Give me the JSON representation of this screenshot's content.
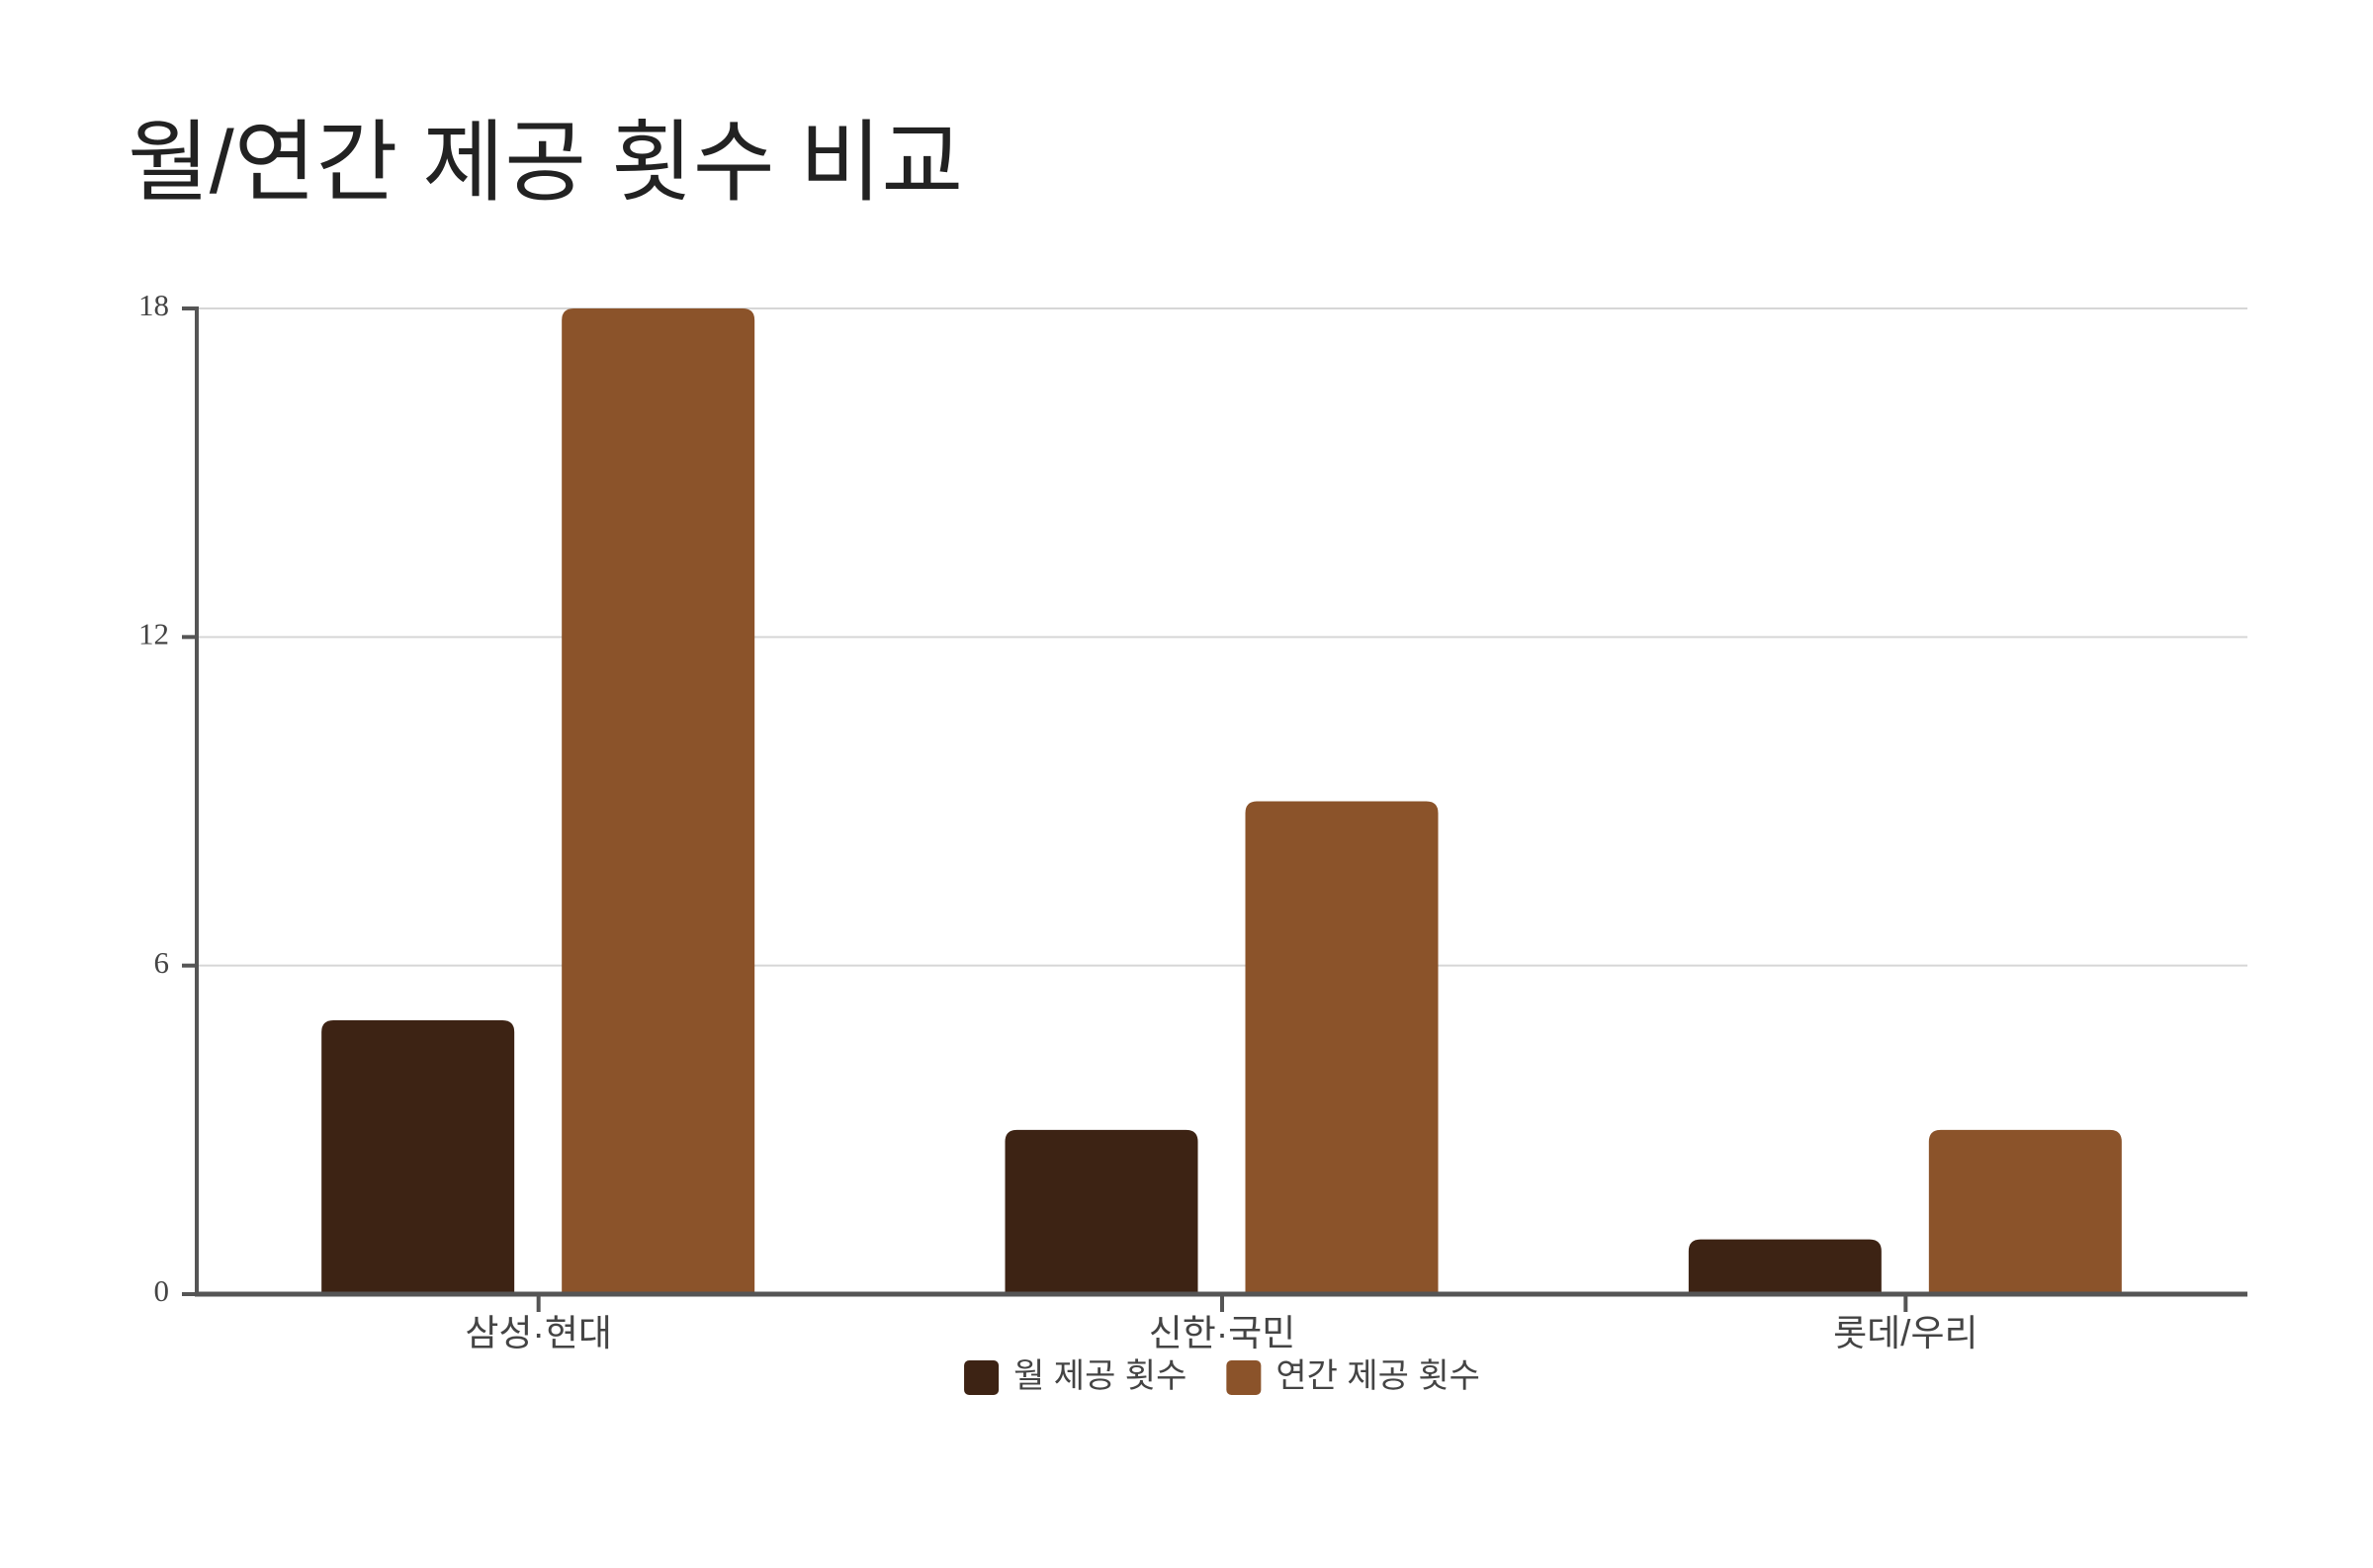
{
  "chart_data": {
    "type": "bar",
    "title": "월/연간 제공 횟수 비교",
    "categories": [
      "삼성·현대",
      "신한·국민",
      "롯데/우리"
    ],
    "series": [
      {
        "name": "월 제공 횟수",
        "color": "#3d2314",
        "values": [
          5,
          3,
          1
        ]
      },
      {
        "name": "연간 제공 횟수",
        "color": "#8b532a",
        "values": [
          18,
          9,
          3
        ]
      }
    ],
    "ylim": [
      0,
      18
    ],
    "yticks": [
      0,
      6,
      12,
      18
    ],
    "grid": true,
    "legend": "bottom"
  }
}
